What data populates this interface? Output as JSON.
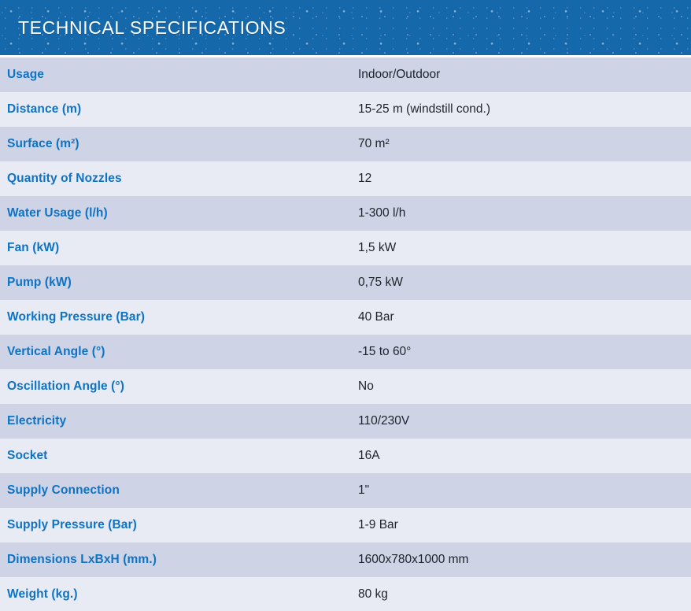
{
  "header": {
    "title": "TECHNICAL SPECIFICATIONS",
    "background_color": "#1568aa",
    "text_color": "#ffffff"
  },
  "colors": {
    "label_text": "#0f73c4",
    "value_text": "#1d222a",
    "row_dark": "#ced3e6",
    "row_light": "#e8eaf4",
    "separator_gap": "#ffffff"
  },
  "table": {
    "columns": [
      "specification",
      "value"
    ],
    "rows": [
      {
        "label": "Usage",
        "value": "Indoor/Outdoor"
      },
      {
        "label": "Distance (m)",
        "value": "15-25 m (windstill cond.)"
      },
      {
        "label": "Surface (m²)",
        "value": "70 m²"
      },
      {
        "label": "Quantity of Nozzles",
        "value": "12"
      },
      {
        "label": "Water Usage (l/h)",
        "value": "1-300 l/h"
      },
      {
        "label": "Fan (kW)",
        "value": "1,5 kW"
      },
      {
        "label": "Pump (kW)",
        "value": "0,75 kW"
      },
      {
        "label": "Working Pressure (Bar)",
        "value": "40 Bar"
      },
      {
        "label": "Vertical Angle (°)",
        "value": "-15 to 60°"
      },
      {
        "label": "Oscillation Angle (°)",
        "value": "No"
      },
      {
        "label": "Electricity",
        "value": "110/230V"
      },
      {
        "label": "Socket",
        "value": "16A"
      },
      {
        "label": "Supply Connection",
        "value": "1\""
      },
      {
        "label": "Supply Pressure (Bar)",
        "value": "1-9 Bar"
      },
      {
        "label": "Dimensions LxBxH (mm.)",
        "value": "1600x780x1000 mm"
      },
      {
        "label": "Weight (kg.)",
        "value": "80 kg"
      }
    ]
  }
}
